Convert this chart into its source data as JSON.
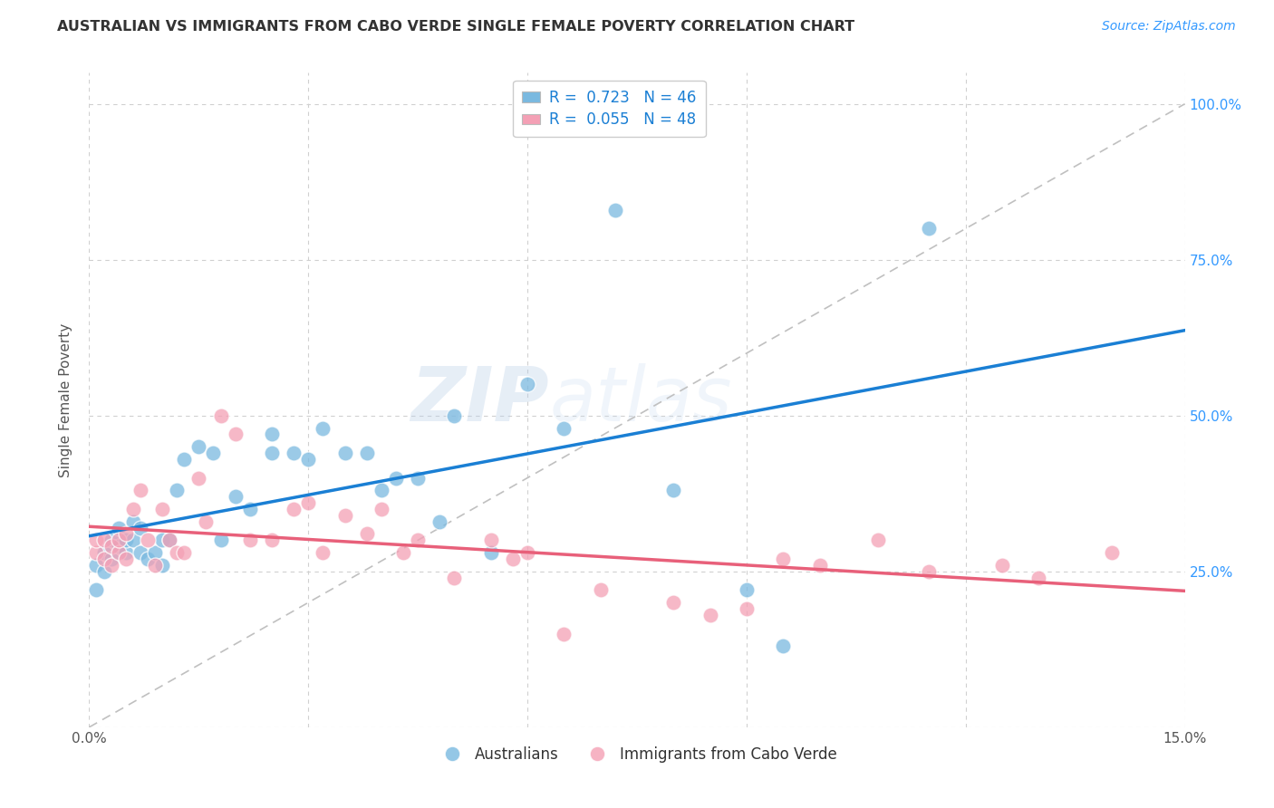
{
  "title": "AUSTRALIAN VS IMMIGRANTS FROM CABO VERDE SINGLE FEMALE POVERTY CORRELATION CHART",
  "source": "Source: ZipAtlas.com",
  "ylabel": "Single Female Poverty",
  "xlim": [
    0.0,
    0.15
  ],
  "ylim": [
    0.0,
    1.05
  ],
  "R_australian": 0.723,
  "N_australian": 46,
  "R_caboverde": 0.055,
  "N_caboverde": 48,
  "color_australian": "#7ab9e0",
  "color_caboverde": "#f4a0b5",
  "trendline_australian_color": "#1a7fd4",
  "trendline_caboverde_color": "#e8607a",
  "diagonal_color": "#c0c0c0",
  "background_color": "#ffffff",
  "grid_color": "#d0d0d0",
  "watermark_zip": "ZIP",
  "watermark_atlas": "atlas",
  "australian_x": [
    0.001,
    0.001,
    0.002,
    0.002,
    0.003,
    0.003,
    0.004,
    0.004,
    0.005,
    0.005,
    0.006,
    0.006,
    0.007,
    0.007,
    0.008,
    0.009,
    0.01,
    0.01,
    0.011,
    0.012,
    0.013,
    0.015,
    0.017,
    0.018,
    0.02,
    0.022,
    0.025,
    0.025,
    0.028,
    0.03,
    0.032,
    0.035,
    0.038,
    0.04,
    0.042,
    0.045,
    0.048,
    0.05,
    0.055,
    0.06,
    0.065,
    0.072,
    0.08,
    0.09,
    0.095,
    0.115
  ],
  "australian_y": [
    0.22,
    0.26,
    0.25,
    0.28,
    0.27,
    0.3,
    0.29,
    0.32,
    0.28,
    0.3,
    0.3,
    0.33,
    0.28,
    0.32,
    0.27,
    0.28,
    0.3,
    0.26,
    0.3,
    0.38,
    0.43,
    0.45,
    0.44,
    0.3,
    0.37,
    0.35,
    0.47,
    0.44,
    0.44,
    0.43,
    0.48,
    0.44,
    0.44,
    0.38,
    0.4,
    0.4,
    0.33,
    0.5,
    0.28,
    0.55,
    0.48,
    0.83,
    0.38,
    0.22,
    0.13,
    0.8
  ],
  "caboverde_x": [
    0.001,
    0.001,
    0.002,
    0.002,
    0.003,
    0.003,
    0.004,
    0.004,
    0.005,
    0.005,
    0.006,
    0.007,
    0.008,
    0.009,
    0.01,
    0.011,
    0.012,
    0.013,
    0.015,
    0.016,
    0.018,
    0.02,
    0.022,
    0.025,
    0.028,
    0.03,
    0.032,
    0.035,
    0.038,
    0.04,
    0.043,
    0.045,
    0.05,
    0.055,
    0.058,
    0.06,
    0.065,
    0.07,
    0.08,
    0.085,
    0.09,
    0.095,
    0.1,
    0.108,
    0.115,
    0.125,
    0.13,
    0.14
  ],
  "caboverde_y": [
    0.28,
    0.3,
    0.27,
    0.3,
    0.26,
    0.29,
    0.28,
    0.3,
    0.27,
    0.31,
    0.35,
    0.38,
    0.3,
    0.26,
    0.35,
    0.3,
    0.28,
    0.28,
    0.4,
    0.33,
    0.5,
    0.47,
    0.3,
    0.3,
    0.35,
    0.36,
    0.28,
    0.34,
    0.31,
    0.35,
    0.28,
    0.3,
    0.24,
    0.3,
    0.27,
    0.28,
    0.15,
    0.22,
    0.2,
    0.18,
    0.19,
    0.27,
    0.26,
    0.3,
    0.25,
    0.26,
    0.24,
    0.28
  ]
}
